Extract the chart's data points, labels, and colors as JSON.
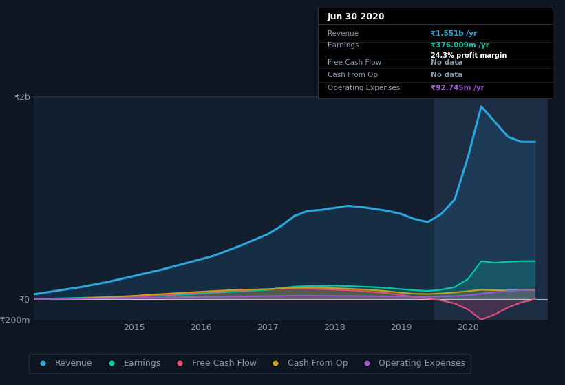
{
  "bg_color": "#0e1621",
  "chart_bg_color": "#131e2e",
  "highlight_bg": "#1c2d44",
  "grid_color": "#263548",
  "text_color": "#8899aa",
  "title_color": "#ffffff",
  "years": [
    2013.5,
    2013.8,
    2014.2,
    2014.6,
    2015.0,
    2015.4,
    2015.8,
    2016.2,
    2016.6,
    2017.0,
    2017.2,
    2017.4,
    2017.6,
    2017.8,
    2018.0,
    2018.2,
    2018.4,
    2018.6,
    2018.8,
    2019.0,
    2019.2,
    2019.4,
    2019.6,
    2019.8,
    2020.0,
    2020.2,
    2020.4,
    2020.6,
    2020.8,
    2021.0
  ],
  "revenue": [
    50,
    80,
    120,
    170,
    230,
    290,
    360,
    430,
    530,
    640,
    720,
    820,
    870,
    880,
    900,
    920,
    910,
    890,
    870,
    840,
    790,
    760,
    840,
    980,
    1400,
    1900,
    1750,
    1600,
    1551,
    1551
  ],
  "earnings": [
    5,
    8,
    15,
    22,
    30,
    38,
    50,
    65,
    80,
    95,
    110,
    125,
    130,
    130,
    135,
    130,
    125,
    120,
    112,
    100,
    90,
    82,
    95,
    120,
    200,
    376,
    360,
    370,
    376,
    376
  ],
  "free_cash_flow": [
    2,
    3,
    8,
    15,
    28,
    42,
    60,
    75,
    90,
    100,
    105,
    108,
    105,
    100,
    95,
    90,
    82,
    72,
    60,
    42,
    25,
    10,
    -10,
    -40,
    -100,
    -200,
    -150,
    -80,
    -30,
    0
  ],
  "cash_from_op": [
    2,
    4,
    10,
    20,
    35,
    52,
    68,
    82,
    95,
    100,
    108,
    115,
    118,
    115,
    110,
    105,
    98,
    90,
    80,
    65,
    55,
    52,
    58,
    68,
    80,
    95,
    90,
    88,
    92,
    93
  ],
  "operating_expenses": [
    2,
    3,
    6,
    10,
    14,
    18,
    22,
    25,
    28,
    32,
    34,
    36,
    36,
    35,
    34,
    33,
    32,
    30,
    29,
    28,
    26,
    25,
    28,
    32,
    40,
    55,
    70,
    82,
    90,
    93
  ],
  "ylim_min": -200,
  "ylim_max": 2000,
  "ytick_labels": [
    "-₹200m",
    "₹0",
    "₹2b"
  ],
  "ytick_vals": [
    -200,
    0,
    2000
  ],
  "xlabel_ticks": [
    2015,
    2016,
    2017,
    2018,
    2019,
    2020
  ],
  "revenue_color": "#29a8e0",
  "earnings_color": "#00c9a7",
  "fcf_color": "#e0507a",
  "cashop_color": "#c8a020",
  "opex_color": "#9b59d0",
  "legend_labels": [
    "Revenue",
    "Earnings",
    "Free Cash Flow",
    "Cash From Op",
    "Operating Expenses"
  ],
  "tooltip_title": "Jun 30 2020",
  "tooltip_revenue_label": "Revenue",
  "tooltip_revenue_val": "₹1.551b /yr",
  "tooltip_earnings_label": "Earnings",
  "tooltip_earnings_val": "₹376.009m /yr",
  "tooltip_margin": "24.3% profit margin",
  "tooltip_fcf_label": "Free Cash Flow",
  "tooltip_fcf_val": "No data",
  "tooltip_cashop_label": "Cash From Op",
  "tooltip_cashop_val": "No data",
  "tooltip_opex_label": "Operating Expenses",
  "tooltip_opex_val": "₹92.745m /yr",
  "highlight_x_start": 2019.5,
  "xmin": 2013.5,
  "xmax": 2021.2
}
